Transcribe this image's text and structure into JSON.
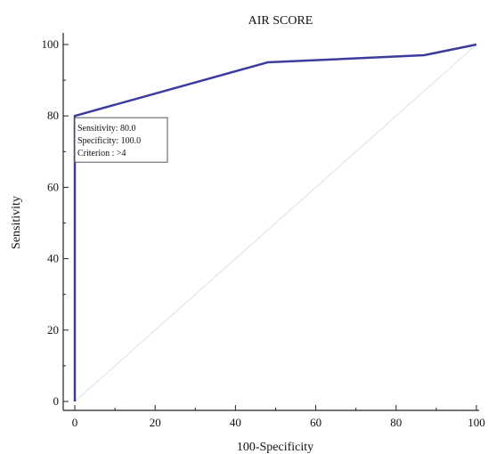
{
  "chart_data": {
    "type": "line",
    "title": "AIR SCORE",
    "xlabel": "100-Specificity",
    "ylabel": "Sensitivity",
    "xlim": [
      0,
      100
    ],
    "ylim": [
      0,
      100
    ],
    "x_ticks": [
      0,
      20,
      40,
      60,
      80,
      100
    ],
    "y_ticks": [
      0,
      20,
      40,
      60,
      80,
      100
    ],
    "grid": false,
    "series": [
      {
        "color": "#3c3c9e",
        "points": [
          {
            "x": 0,
            "y": 0
          },
          {
            "x": 0,
            "y": 80
          },
          {
            "x": 48,
            "y": 95
          },
          {
            "x": 87,
            "y": 97
          },
          {
            "x": 100,
            "y": 100
          }
        ]
      }
    ],
    "reference_line": {
      "from": [
        0,
        0
      ],
      "to": [
        100,
        100
      ],
      "color": "#e0e0e0"
    },
    "annotation": {
      "anchor": {
        "x": 0,
        "y": 80
      },
      "lines": [
        "Sensitivity: 80.0",
        "Specificity: 100.0",
        "Criterion : >4"
      ]
    }
  }
}
